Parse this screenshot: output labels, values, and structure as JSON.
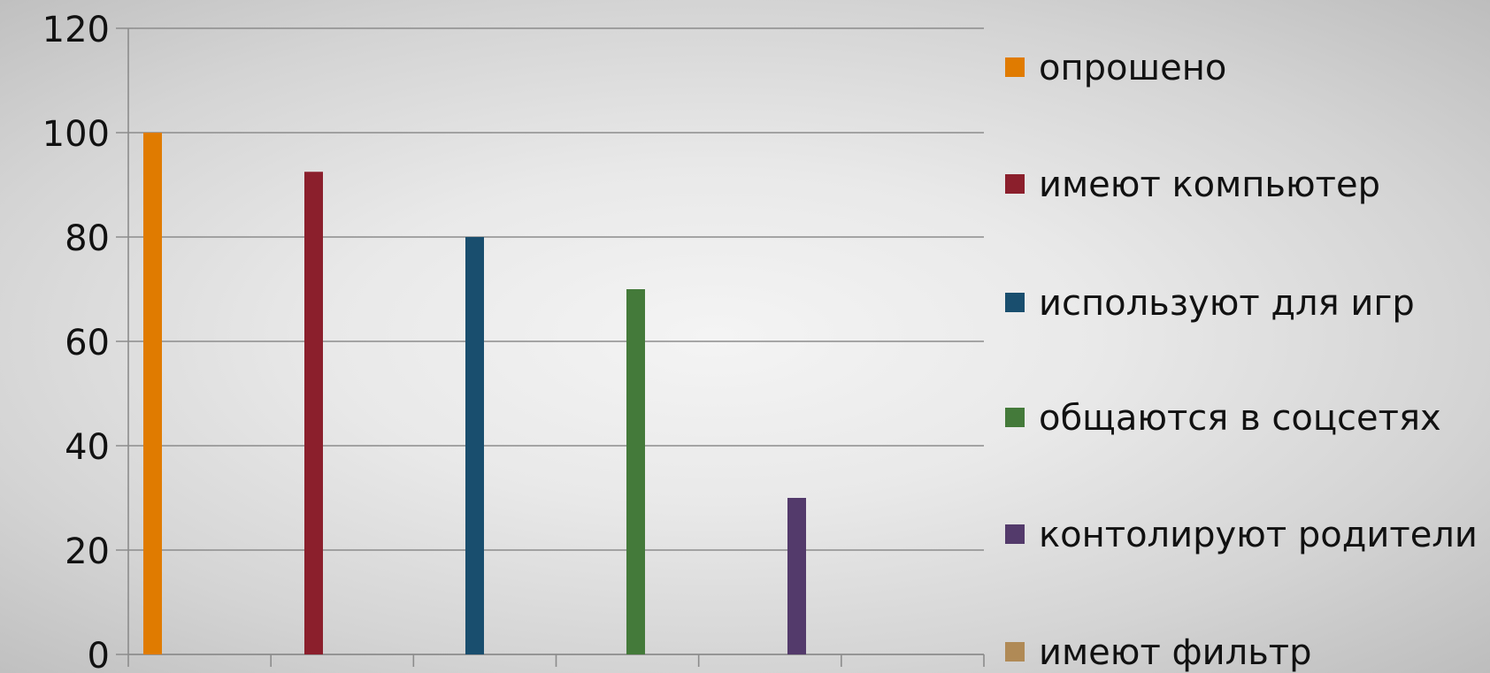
{
  "chart_data": {
    "type": "bar",
    "ylim": [
      0,
      120
    ],
    "yticks": [
      0,
      20,
      40,
      60,
      80,
      100,
      120
    ],
    "grid": true,
    "legend_position": "right",
    "series": [
      {
        "name": "опрошено",
        "value": 100,
        "color": "#E07B00"
      },
      {
        "name": "имеют компьютер",
        "value": 92.5,
        "color": "#8B1F2C"
      },
      {
        "name": "используют для игр",
        "value": 80,
        "color": "#194E6E"
      },
      {
        "name": "общаются в соцсетях",
        "value": 70,
        "color": "#447A3A"
      },
      {
        "name": "контолируют родители",
        "value": 30,
        "color": "#533A6B"
      },
      {
        "name": "имеют фильтр",
        "value": 0,
        "color": "#B08A56"
      }
    ]
  }
}
